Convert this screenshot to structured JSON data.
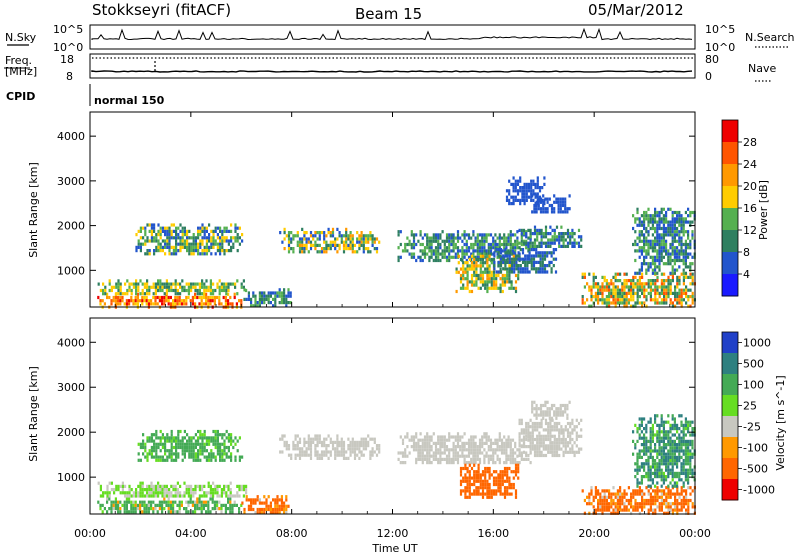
{
  "header": {
    "station": "Stokkseyri (fitACF)",
    "beam": "Beam 15",
    "date": "05/Mar/2012"
  },
  "ancillary": {
    "nsky_label": "N.Sky",
    "nsearch_label": "N.Search",
    "nsky_range": [
      "10^0",
      "10^5"
    ],
    "freq_label": "Freq.",
    "freq_unit": "[MHz]",
    "freq_range": [
      "8",
      "18"
    ],
    "nave_label": "Nave",
    "nave_range": [
      "0",
      "80"
    ],
    "cpid_label": "CPID",
    "cpid_value": "normal 150"
  },
  "chart_data": [
    {
      "type": "heatmap",
      "panel": "power",
      "xlabel": "Time UT",
      "ylabel": "Slant Range [km]",
      "xlim": [
        0,
        24
      ],
      "ylim": [
        180,
        4540
      ],
      "xticks": [
        "00:00",
        "04:00",
        "08:00",
        "12:00",
        "16:00",
        "20:00",
        "00:00"
      ],
      "yticks": [
        1000,
        2000,
        3000,
        4000
      ],
      "colorbar": {
        "label": "Power [dB]",
        "range": [
          0,
          32
        ],
        "ticks": [
          4,
          8,
          12,
          16,
          20,
          24,
          28
        ],
        "colors": [
          "#1a1aff",
          "#2255cc",
          "#2e7f60",
          "#55b050",
          "#ffcc00",
          "#ff9900",
          "#ff5500",
          "#ee0000"
        ]
      },
      "regions": [
        {
          "t": [
            0.2,
            6.0
          ],
          "r": [
            200,
            500
          ],
          "v": [
            16,
            30
          ]
        },
        {
          "t": [
            0.3,
            6.2
          ],
          "r": [
            500,
            800
          ],
          "v": [
            8,
            20
          ]
        },
        {
          "t": [
            1.8,
            6.0
          ],
          "r": [
            1350,
            2050
          ],
          "v": [
            4,
            20
          ]
        },
        {
          "t": [
            6.0,
            8.0
          ],
          "r": [
            200,
            600
          ],
          "v": [
            4,
            16
          ]
        },
        {
          "t": [
            7.5,
            11.5
          ],
          "r": [
            1400,
            1950
          ],
          "v": [
            4,
            22
          ]
        },
        {
          "t": [
            12.2,
            17.5
          ],
          "r": [
            1250,
            1900
          ],
          "v": [
            4,
            16
          ]
        },
        {
          "t": [
            14.5,
            17.0
          ],
          "r": [
            550,
            1350
          ],
          "v": [
            8,
            24
          ]
        },
        {
          "t": [
            16.0,
            18.5
          ],
          "r": [
            950,
            1500
          ],
          "v": [
            4,
            12
          ]
        },
        {
          "t": [
            17.0,
            19.5
          ],
          "r": [
            1500,
            2000
          ],
          "v": [
            4,
            14
          ]
        },
        {
          "t": [
            17.5,
            19.0
          ],
          "r": [
            2300,
            2700
          ],
          "v": [
            4,
            8
          ]
        },
        {
          "t": [
            16.5,
            18.0
          ],
          "r": [
            2500,
            3100
          ],
          "v": [
            4,
            8
          ]
        },
        {
          "t": [
            19.5,
            24.0
          ],
          "r": [
            200,
            950
          ],
          "v": [
            8,
            26
          ]
        },
        {
          "t": [
            21.5,
            24.0
          ],
          "r": [
            950,
            2400
          ],
          "v": [
            4,
            16
          ]
        }
      ]
    },
    {
      "type": "heatmap",
      "panel": "velocity",
      "xlabel": "Time UT",
      "ylabel": "Slant Range [km]",
      "xlim": [
        0,
        24
      ],
      "ylim": [
        180,
        4540
      ],
      "xticks": [
        "00:00",
        "04:00",
        "08:00",
        "12:00",
        "16:00",
        "20:00",
        "00:00"
      ],
      "yticks": [
        1000,
        2000,
        3000,
        4000
      ],
      "colorbar": {
        "label": "Velocity [m s^-1]",
        "ticks": [
          1000,
          500,
          100,
          25,
          -25,
          -100,
          -500,
          -1000
        ],
        "colors": [
          "#2040c8",
          "#2e8080",
          "#44aa55",
          "#66dd22",
          "#c8c8c0",
          "#ff9900",
          "#ff6600",
          "#ee0000"
        ]
      },
      "regions": [
        {
          "t": [
            0.2,
            6.0
          ],
          "r": [
            200,
            550
          ],
          "v": [
            -100,
            500
          ]
        },
        {
          "t": [
            0.3,
            6.2
          ],
          "r": [
            550,
            900
          ],
          "v": [
            -25,
            100
          ]
        },
        {
          "t": [
            1.8,
            6.0
          ],
          "r": [
            1350,
            2050
          ],
          "v": [
            25,
            500
          ]
        },
        {
          "t": [
            6.0,
            8.0
          ],
          "r": [
            200,
            600
          ],
          "v": [
            -500,
            25
          ]
        },
        {
          "t": [
            7.5,
            11.5
          ],
          "r": [
            1400,
            1950
          ],
          "v": [
            -25,
            25
          ]
        },
        {
          "t": [
            12.2,
            17.5
          ],
          "r": [
            1300,
            2000
          ],
          "v": [
            -25,
            25
          ]
        },
        {
          "t": [
            14.5,
            17.0
          ],
          "r": [
            550,
            1300
          ],
          "v": [
            -500,
            -100
          ]
        },
        {
          "t": [
            17.0,
            19.5
          ],
          "r": [
            1500,
            2300
          ],
          "v": [
            -25,
            25
          ]
        },
        {
          "t": [
            17.5,
            19.0
          ],
          "r": [
            2300,
            2700
          ],
          "v": [
            -25,
            25
          ]
        },
        {
          "t": [
            19.5,
            24.0
          ],
          "r": [
            200,
            800
          ],
          "v": [
            -500,
            25
          ]
        },
        {
          "t": [
            21.5,
            24.0
          ],
          "r": [
            800,
            2400
          ],
          "v": [
            25,
            1000
          ]
        }
      ]
    }
  ]
}
